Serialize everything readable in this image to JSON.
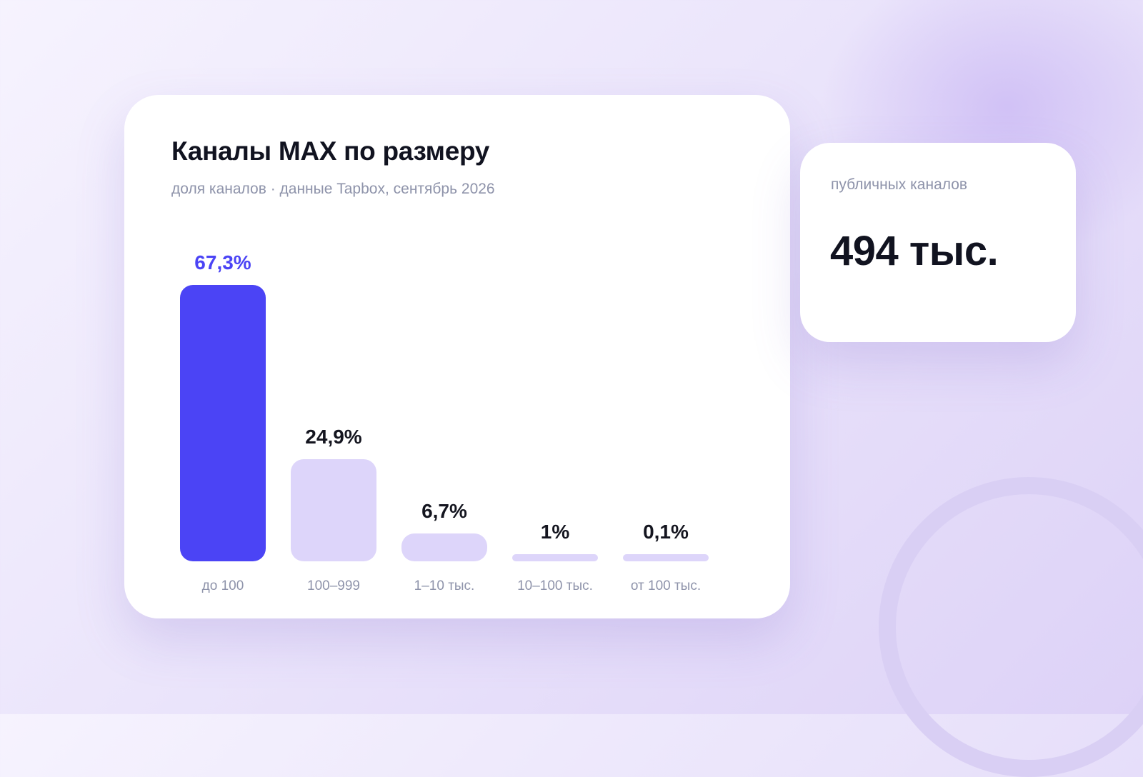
{
  "chart_data": {
    "type": "bar",
    "title": "Каналы MAX по размеру",
    "subtitle": "доля каналов · данные Tapbox, сентябрь 2026",
    "categories": [
      "до 100",
      "100–999",
      "1–10 тыс.",
      "10–100 тыс.",
      "от 100 тыс."
    ],
    "values": [
      67.3,
      24.9,
      6.7,
      1,
      0.1
    ],
    "value_labels": [
      "67,3%",
      "24,9%",
      "6,7%",
      "1%",
      "0,1%"
    ],
    "ylim": [
      0,
      67.3
    ],
    "grid": false,
    "highlight_index": 0,
    "colors": {
      "highlight": "#4b44f5",
      "default": "#ddd5fa"
    }
  },
  "stat_card": {
    "label": "публичных каналов",
    "value": "494 тыс."
  }
}
